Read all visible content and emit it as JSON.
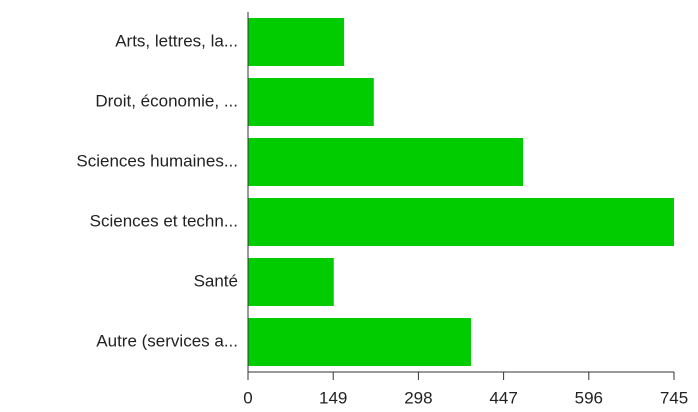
{
  "chart_data": {
    "type": "bar",
    "orientation": "horizontal",
    "categories": [
      "Arts, lettres, la...",
      "Droit, économie, ...",
      "Sciences humaines...",
      "Sciences et techn...",
      "Santé",
      "Autre (services a..."
    ],
    "values": [
      168,
      220,
      481,
      745,
      150,
      390
    ],
    "color": "#00cc00",
    "xlim": [
      0,
      745
    ],
    "xticks": [
      0,
      149,
      298,
      447,
      596,
      745
    ],
    "grid": false
  }
}
